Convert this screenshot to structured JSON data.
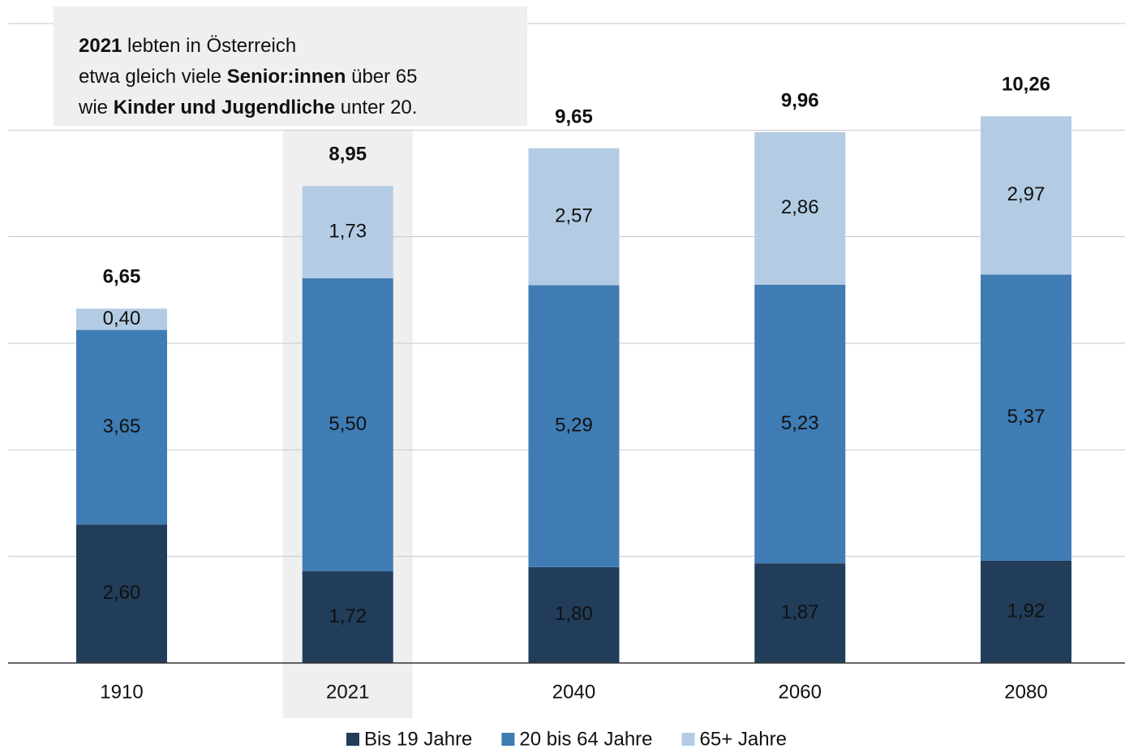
{
  "chart_data": {
    "type": "stacked_bar",
    "categories": [
      "1910",
      "2021",
      "2040",
      "2060",
      "2080"
    ],
    "series": [
      {
        "name": "Bis 19 Jahre",
        "color": "#213d5a",
        "label_color": "#ffffff",
        "values": [
          2.6,
          1.72,
          1.8,
          1.87,
          1.92
        ],
        "value_labels": [
          "2,60",
          "1,72",
          "1,80",
          "1,87",
          "1,92"
        ]
      },
      {
        "name": "20 bis 64 Jahre",
        "color": "#3f7cb4",
        "label_color": "#111111",
        "values": [
          3.65,
          5.5,
          5.29,
          5.23,
          5.37
        ],
        "value_labels": [
          "3,65",
          "5,50",
          "5,29",
          "5,23",
          "5,37"
        ]
      },
      {
        "name": "65+ Jahre",
        "color": "#b3cce3",
        "label_color": "#111111",
        "values": [
          0.4,
          1.73,
          2.57,
          2.86,
          2.97
        ],
        "value_labels": [
          "0,40",
          "1,73",
          "2,57",
          "2,86",
          "2,97"
        ]
      }
    ],
    "totals": [
      6.65,
      8.95,
      9.65,
      9.96,
      10.26
    ],
    "total_labels": [
      "6,65",
      "8,95",
      "9,65",
      "9,96",
      "10,26"
    ],
    "ylim": [
      0,
      12
    ],
    "yticks": [
      0,
      2,
      4,
      6,
      8,
      10,
      12
    ],
    "grid": true,
    "highlight_index": 1,
    "legend": "bottom",
    "annotation": [
      [
        {
          "text": "2021",
          "bold": true
        },
        {
          "text": " lebten in Österreich",
          "bold": false
        }
      ],
      [
        {
          "text": "etwa gleich viele ",
          "bold": false
        },
        {
          "text": "Senior:innen",
          "bold": true
        },
        {
          "text": " über 65",
          "bold": false
        }
      ],
      [
        {
          "text": "wie ",
          "bold": false
        },
        {
          "text": "Kinder und Jugendliche",
          "bold": true
        },
        {
          "text": " unter 20.",
          "bold": false
        }
      ]
    ]
  }
}
